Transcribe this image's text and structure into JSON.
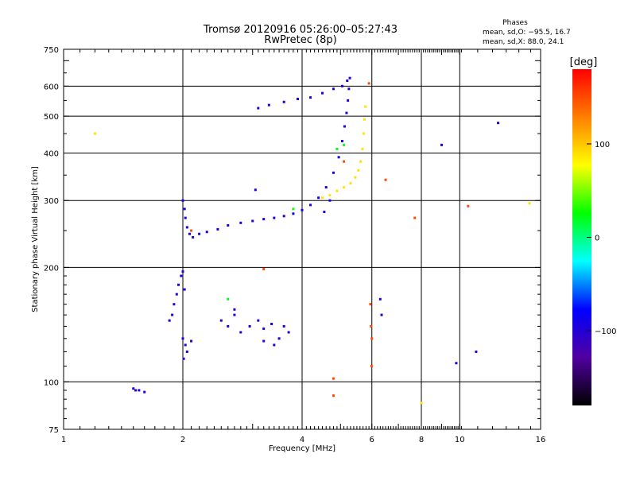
{
  "chart_data": {
    "type": "scatter",
    "title": "Tromsø 20120916 05:26:00–05:27:43",
    "subtitle": "RwPretec (8p)",
    "xlabel": "Frequency [MHz]",
    "ylabel": "Stationary phase Virtual Height [km]",
    "xscale": "log",
    "yscale": "log",
    "xlim": [
      1,
      16
    ],
    "ylim": [
      75,
      750
    ],
    "xticks": [
      1,
      2,
      4,
      6,
      8,
      10,
      16
    ],
    "xtick_labels": [
      "1",
      "2",
      "4",
      "6",
      "8",
      "10",
      "16"
    ],
    "yticks": [
      75,
      100,
      200,
      300,
      400,
      500,
      600,
      750
    ],
    "ytick_labels": [
      "75",
      "100",
      "200",
      "300",
      "400",
      "500",
      "600",
      "750"
    ],
    "grid": true,
    "stats": {
      "heading": "Phases",
      "o_line": "mean, sd,O: −95.5, 16.7",
      "x_line": "mean, sd,X:  88.0, 24.1"
    },
    "colorbar": {
      "label": "[deg]",
      "range": [
        -180,
        180
      ],
      "ticks": [
        100,
        0,
        -100
      ],
      "tick_labels": [
        "100",
        "0",
        "−100"
      ],
      "colors": [
        "#ff0000",
        "#ff7f00",
        "#ffff00",
        "#00ff00",
        "#00ffff",
        "#0000ff",
        "#5000a0",
        "#000000"
      ]
    },
    "series": [
      {
        "phase": -95.5,
        "points": [
          [
            2.0,
            300
          ],
          [
            2.02,
            285
          ],
          [
            2.03,
            270
          ],
          [
            2.05,
            255
          ],
          [
            2.08,
            245
          ],
          [
            2.12,
            240
          ],
          [
            2.2,
            245
          ],
          [
            2.3,
            248
          ],
          [
            2.45,
            252
          ],
          [
            2.6,
            258
          ],
          [
            2.8,
            262
          ],
          [
            3.0,
            265
          ],
          [
            3.2,
            268
          ],
          [
            3.4,
            270
          ],
          [
            3.6,
            273
          ],
          [
            3.8,
            277
          ],
          [
            4.0,
            283
          ],
          [
            4.2,
            292
          ],
          [
            4.4,
            305
          ],
          [
            4.6,
            325
          ],
          [
            4.8,
            355
          ],
          [
            4.95,
            390
          ],
          [
            5.05,
            430
          ],
          [
            5.12,
            470
          ],
          [
            5.18,
            510
          ],
          [
            5.22,
            550
          ],
          [
            5.25,
            590
          ],
          [
            5.28,
            630
          ],
          [
            5.2,
            620
          ],
          [
            5.05,
            600
          ],
          [
            4.8,
            590
          ],
          [
            4.5,
            575
          ],
          [
            4.2,
            560
          ],
          [
            3.9,
            555
          ],
          [
            3.6,
            545
          ],
          [
            3.3,
            535
          ],
          [
            3.1,
            525
          ],
          [
            1.85,
            145
          ],
          [
            1.88,
            150
          ],
          [
            1.9,
            160
          ],
          [
            1.93,
            170
          ],
          [
            1.95,
            180
          ],
          [
            1.98,
            190
          ],
          [
            2.0,
            195
          ],
          [
            2.02,
            175
          ],
          [
            2.0,
            130
          ],
          [
            2.03,
            125
          ],
          [
            2.05,
            120
          ],
          [
            2.1,
            128
          ],
          [
            2.01,
            115
          ],
          [
            2.5,
            145
          ],
          [
            2.6,
            140
          ],
          [
            2.7,
            150
          ],
          [
            2.8,
            135
          ],
          [
            2.95,
            140
          ],
          [
            3.1,
            145
          ],
          [
            3.2,
            138
          ],
          [
            3.35,
            142
          ],
          [
            3.5,
            130
          ],
          [
            3.6,
            140
          ],
          [
            3.7,
            135
          ],
          [
            3.2,
            128
          ],
          [
            3.4,
            125
          ],
          [
            2.7,
            155
          ],
          [
            1.5,
            96
          ],
          [
            1.52,
            95
          ],
          [
            1.55,
            95
          ],
          [
            1.6,
            94
          ],
          [
            3.05,
            320
          ],
          [
            4.55,
            280
          ],
          [
            4.7,
            300
          ],
          [
            6.3,
            165
          ],
          [
            6.35,
            150
          ],
          [
            9.0,
            420
          ],
          [
            12.5,
            480
          ],
          [
            11.0,
            120
          ],
          [
            9.8,
            112
          ]
        ]
      },
      {
        "phase": 88.0,
        "points": [
          [
            4.5,
            305
          ],
          [
            4.7,
            310
          ],
          [
            4.9,
            318
          ],
          [
            5.1,
            325
          ],
          [
            5.3,
            333
          ],
          [
            5.45,
            345
          ],
          [
            5.55,
            360
          ],
          [
            5.62,
            380
          ],
          [
            5.68,
            410
          ],
          [
            5.72,
            450
          ],
          [
            5.75,
            490
          ],
          [
            5.78,
            530
          ],
          [
            1.2,
            450
          ],
          [
            15.0,
            295
          ],
          [
            8.0,
            88
          ]
        ]
      },
      {
        "phase": 150,
        "points": [
          [
            5.9,
            610
          ],
          [
            5.95,
            160
          ],
          [
            5.97,
            140
          ],
          [
            6.0,
            130
          ],
          [
            5.99,
            110
          ],
          [
            6.5,
            340
          ],
          [
            7.7,
            270
          ],
          [
            10.5,
            290
          ],
          [
            4.8,
            92
          ],
          [
            4.8,
            102
          ],
          [
            2.1,
            250
          ],
          [
            3.2,
            198
          ],
          [
            5.1,
            380
          ]
        ]
      },
      {
        "phase": 20,
        "points": [
          [
            4.9,
            410
          ],
          [
            5.1,
            420
          ],
          [
            2.6,
            165
          ],
          [
            3.8,
            285
          ]
        ]
      }
    ]
  }
}
